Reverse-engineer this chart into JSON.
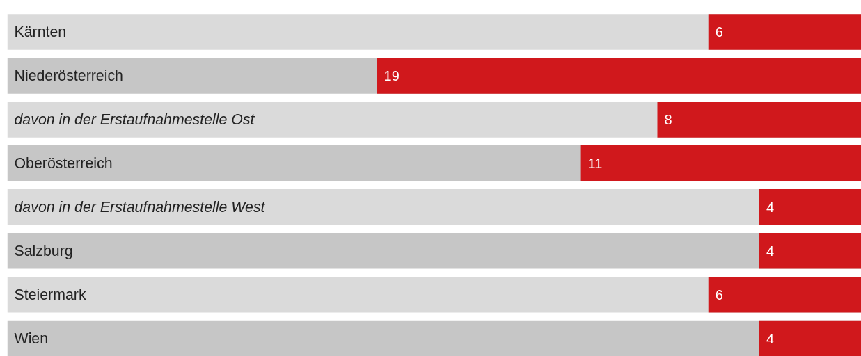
{
  "chart_data": {
    "type": "bar",
    "orientation": "horizontal",
    "categories": [
      "Kärnten",
      "Niederösterreich",
      "  davon in der Erstaufnahmestelle Ost",
      "Oberösterreich",
      "  davon in der Erstaufnahmestelle West",
      "Salzburg",
      "Steiermark",
      "Wien"
    ],
    "values": [
      6,
      19,
      8,
      11,
      4,
      4,
      6,
      4
    ],
    "color": "#d0181c",
    "xlim": [
      33.5,
      0
    ],
    "tick_labels": false,
    "grid": false,
    "data_labels": true
  }
}
